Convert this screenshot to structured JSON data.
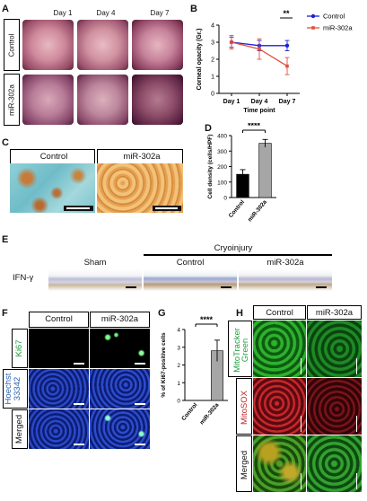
{
  "panels": {
    "A": {
      "label": "A",
      "days": [
        "Day 1",
        "Day 4",
        "Day 7"
      ],
      "rows": [
        "Control",
        "miR-302a"
      ]
    },
    "B": {
      "label": "B"
    },
    "C": {
      "label": "C",
      "titles": [
        "Control",
        "miR-302a"
      ]
    },
    "D": {
      "label": "D"
    },
    "E": {
      "label": "E",
      "group": "Cryoinjury",
      "columns": [
        "Sham",
        "Control",
        "miR-302a"
      ],
      "row": "IFN-γ"
    },
    "F": {
      "label": "F",
      "columns": [
        "Control",
        "miR-302a"
      ],
      "rows": [
        "Ki67",
        "Hoechst 33342",
        "Merged"
      ],
      "hoechst_lines": [
        "Hoechst",
        "33342"
      ]
    },
    "G": {
      "label": "G"
    },
    "H": {
      "label": "H",
      "columns": [
        "Control",
        "miR-302a"
      ],
      "rows": [
        "MitoTracker Green",
        "MitoSOX",
        "Merged"
      ],
      "mito_lines": [
        "MitoTracker",
        "Green"
      ]
    }
  },
  "colors": {
    "control": "#1f1fd6",
    "mir302a": "#e0503c",
    "ki67": "#1e9e3e",
    "hoechst": "#2a5fb0",
    "mitotracker": "#1e9e3e",
    "mitosox": "#c0282c"
  },
  "chart_data": [
    {
      "panel": "B",
      "type": "line",
      "x": [
        "Day 1",
        "Day 4",
        "Day 7"
      ],
      "series": [
        {
          "name": "Control",
          "values": [
            3.0,
            2.8,
            2.8
          ],
          "errors": [
            0.3,
            0.3,
            0.3
          ]
        },
        {
          "name": "miR-302a",
          "values": [
            3.0,
            2.6,
            1.6
          ],
          "errors": [
            0.4,
            0.6,
            0.5
          ]
        }
      ],
      "xlabel": "Time point",
      "ylabel": "Corneal opacity (Gr.)",
      "yticks": [
        0,
        1,
        2,
        3,
        4
      ],
      "ylim": [
        0,
        4
      ],
      "significance": [
        {
          "at": "Day 7",
          "label": "**"
        }
      ],
      "legend": "top-right"
    },
    {
      "panel": "D",
      "type": "bar",
      "categories": [
        "Control",
        "miR-302a"
      ],
      "values": [
        150,
        350
      ],
      "errors": [
        30,
        25
      ],
      "bar_colors": [
        "#000000",
        "#a6a6a6"
      ],
      "ylabel": "Cell density (cells/HPF)",
      "yticks": [
        0,
        100,
        200,
        300,
        400
      ],
      "ylim": [
        0,
        400
      ],
      "significance": "****"
    },
    {
      "panel": "G",
      "type": "bar",
      "categories": [
        "Control",
        "miR-302a"
      ],
      "values": [
        0,
        2.8
      ],
      "errors": [
        0,
        0.6
      ],
      "bar_colors": [
        "#000000",
        "#a6a6a6"
      ],
      "ylabel": "% of Ki67-positive cells",
      "yticks": [
        0,
        1,
        2,
        3,
        4
      ],
      "ylim": [
        0,
        4
      ],
      "significance": "****"
    }
  ]
}
